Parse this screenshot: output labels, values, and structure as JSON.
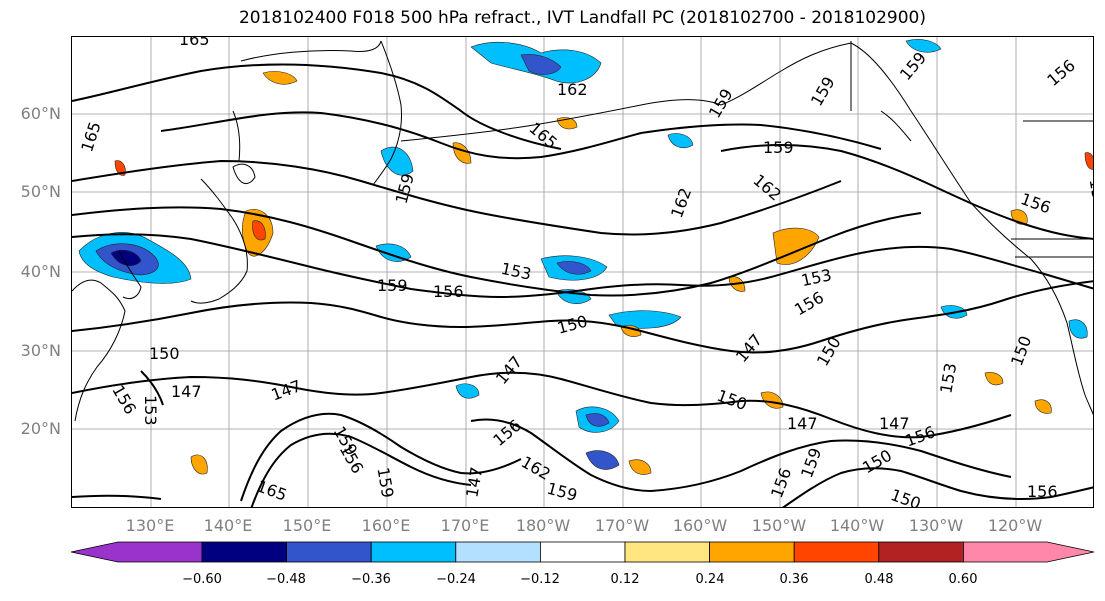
{
  "title": "2018102400 F018 500 hPa refract., IVT Landfall PC (2018102700 - 2018102900)",
  "lat_labels": [
    "60°N",
    "50°N",
    "40°N",
    "30°N",
    "20°N"
  ],
  "lon_labels": [
    "130°E",
    "140°E",
    "150°E",
    "160°E",
    "170°E",
    "180°W",
    "170°W",
    "160°W",
    "150°W",
    "140°W",
    "130°W",
    "120°W"
  ],
  "contour_labels": [
    "165",
    "165",
    "162",
    "165",
    "159",
    "159",
    "159",
    "159",
    "162",
    "162",
    "156",
    "156",
    "159",
    "153",
    "159",
    "156",
    "153",
    "156",
    "150",
    "150",
    "150",
    "147",
    "147",
    "147",
    "156",
    "153",
    "147",
    "150",
    "147",
    "156",
    "159",
    "162",
    "159",
    "156",
    "159",
    "156",
    "147",
    "150",
    "156",
    "150",
    "156",
    "153",
    "165",
    "147",
    "150",
    "156",
    "159"
  ],
  "colorbar": {
    "ticks": [
      "−0.60",
      "−0.48",
      "−0.36",
      "−0.24",
      "−0.12",
      "0.12",
      "0.24",
      "0.36",
      "0.48",
      "0.60"
    ],
    "colors": [
      "#9933cc",
      "#000080",
      "#3355cc",
      "#00bfff",
      "#b3e0ff",
      "#ffffff",
      "#ffe680",
      "#ffa500",
      "#ff4500",
      "#b22222",
      "#ff88aa"
    ]
  }
}
